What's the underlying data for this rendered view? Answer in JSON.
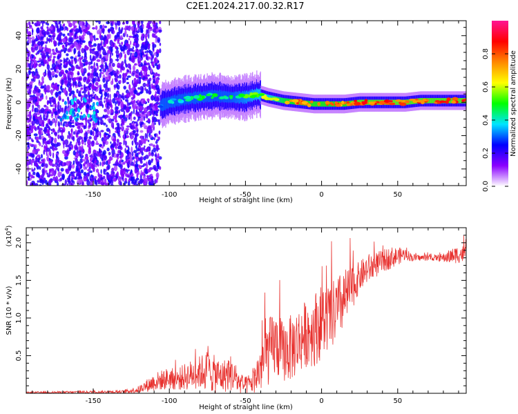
{
  "title": "C2E1.2024.217.00.32.R17",
  "colors": {
    "snr_line": "#e8322f",
    "axis": "#000000"
  },
  "chart_data": [
    {
      "id": "spectrogram",
      "type": "heatmap",
      "xlabel": "Height of straight line (km)",
      "ylabel": "Frequency (Hz)",
      "xlim": [
        -194,
        95
      ],
      "ylim": [
        -50,
        49
      ],
      "xticks": [
        -150,
        -100,
        -50,
        0,
        50
      ],
      "yticks": [
        -40,
        -20,
        0,
        20,
        40
      ],
      "colorbar": {
        "label": "Normalized spectral amplitude",
        "range": [
          0,
          1
        ],
        "ticks": [
          "0.0",
          "0.2",
          "0.4",
          "0.6",
          "0.8"
        ],
        "tick_values": [
          0,
          0.2,
          0.4,
          0.6,
          0.8
        ],
        "colormap": [
          "#ffffff",
          "#8a00ff",
          "#0000ff",
          "#00e5ff",
          "#00ff00",
          "#ffff00",
          "#ff8800",
          "#ff0000",
          "#ff1493"
        ]
      },
      "noise_region_x": [
        -194,
        -106
      ],
      "trace": {
        "x": [
          -106,
          -100,
          -90,
          -80,
          -70,
          -60,
          -50,
          -42,
          -35,
          -25,
          -15,
          -5,
          5,
          15,
          25,
          35,
          45,
          55,
          65,
          75,
          85,
          95
        ],
        "freq": [
          -2,
          0,
          2,
          3,
          4,
          3,
          3,
          5,
          3,
          1,
          0,
          -1,
          -1,
          -1,
          0,
          0,
          0,
          0,
          1,
          1,
          1,
          1
        ],
        "amplitude": [
          0.35,
          0.4,
          0.45,
          0.5,
          0.5,
          0.5,
          0.55,
          0.6,
          0.65,
          0.8,
          0.85,
          0.85,
          0.85,
          0.85,
          0.9,
          0.9,
          0.92,
          0.9,
          0.9,
          0.9,
          0.9,
          0.9
        ]
      }
    },
    {
      "id": "snr",
      "type": "line",
      "xlabel": "Height of straight line (km)",
      "ylabel": "SNR (10 * v/v)",
      "yscale_label": "(x10",
      "yscale_exp": "4",
      "xlim": [
        -194,
        95
      ],
      "ylim": [
        0,
        2.2
      ],
      "xticks": [
        -150,
        -100,
        -50,
        0,
        50
      ],
      "yticks": [
        0.5,
        1.0,
        1.5,
        2.0
      ],
      "ytick_labels": [
        "0.5",
        "1.0",
        "1.5",
        "2.0"
      ],
      "envelope": {
        "x": [
          -194,
          -130,
          -120,
          -110,
          -100,
          -95,
          -90,
          -85,
          -80,
          -75,
          -70,
          -65,
          -60,
          -55,
          -50,
          -45,
          -40,
          -35,
          -30,
          -25,
          -20,
          -15,
          -10,
          -5,
          0,
          5,
          10,
          15,
          20,
          25,
          30,
          35,
          40,
          45,
          50,
          55,
          60,
          65,
          70,
          75,
          80,
          85,
          90,
          95
        ],
        "mean": [
          0.01,
          0.02,
          0.05,
          0.15,
          0.2,
          0.18,
          0.22,
          0.25,
          0.28,
          0.3,
          0.25,
          0.22,
          0.28,
          0.15,
          0.1,
          0.15,
          0.35,
          0.55,
          0.65,
          0.55,
          0.6,
          0.7,
          0.8,
          0.85,
          0.95,
          1.0,
          1.1,
          1.25,
          1.4,
          1.55,
          1.65,
          1.7,
          1.75,
          1.8,
          1.82,
          1.85,
          1.8,
          1.8,
          1.8,
          1.8,
          1.8,
          1.82,
          1.85,
          1.85
        ],
        "spread": [
          0.01,
          0.02,
          0.05,
          0.12,
          0.15,
          0.14,
          0.18,
          0.2,
          0.22,
          0.28,
          0.25,
          0.22,
          0.25,
          0.15,
          0.12,
          0.15,
          0.35,
          0.45,
          0.45,
          0.4,
          0.45,
          0.45,
          0.45,
          0.5,
          0.5,
          0.45,
          0.45,
          0.4,
          0.3,
          0.2,
          0.2,
          0.18,
          0.15,
          0.15,
          0.12,
          0.08,
          0.05,
          0.04,
          0.04,
          0.04,
          0.06,
          0.1,
          0.12,
          0.12
        ]
      },
      "samples": 1300
    }
  ]
}
